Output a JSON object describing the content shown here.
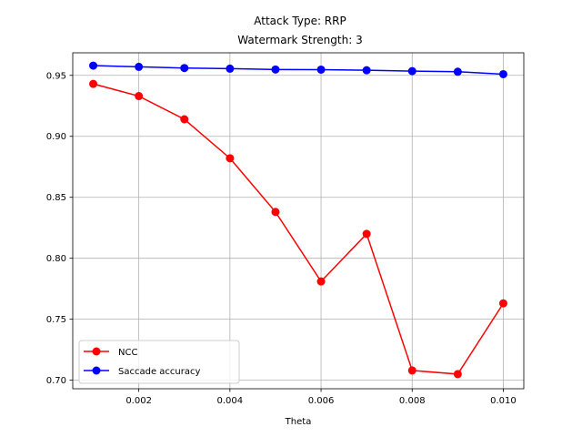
{
  "chart_data": {
    "type": "line",
    "title": [
      "Attack Type: RRP",
      "Watermark Strength: 3"
    ],
    "xlabel": "Theta",
    "ylabel": "",
    "xlim": [
      0.00055,
      0.01045
    ],
    "ylim": [
      0.693,
      0.9685
    ],
    "x": [
      0.001,
      0.002,
      0.003,
      0.004,
      0.005,
      0.006,
      0.007,
      0.008,
      0.009,
      0.01
    ],
    "xticks": [
      0.002,
      0.004,
      0.006,
      0.008,
      0.01
    ],
    "xtick_labels": [
      "0.002",
      "0.004",
      "0.006",
      "0.008",
      "0.010"
    ],
    "yticks": [
      0.7,
      0.75,
      0.8,
      0.85,
      0.9,
      0.95
    ],
    "ytick_labels": [
      "0.70",
      "0.75",
      "0.80",
      "0.85",
      "0.90",
      "0.95"
    ],
    "grid": true,
    "legend_position": "lower-left",
    "series": [
      {
        "name": "NCC",
        "color": "#ff0000",
        "marker": "circle",
        "values": [
          0.943,
          0.933,
          0.914,
          0.882,
          0.838,
          0.781,
          0.82,
          0.708,
          0.705,
          0.763
        ]
      },
      {
        "name": "Saccade accuracy",
        "color": "#0000ff",
        "marker": "circle",
        "values": [
          0.958,
          0.957,
          0.956,
          0.9555,
          0.9548,
          0.9547,
          0.9542,
          0.9535,
          0.953,
          0.951
        ]
      }
    ]
  }
}
